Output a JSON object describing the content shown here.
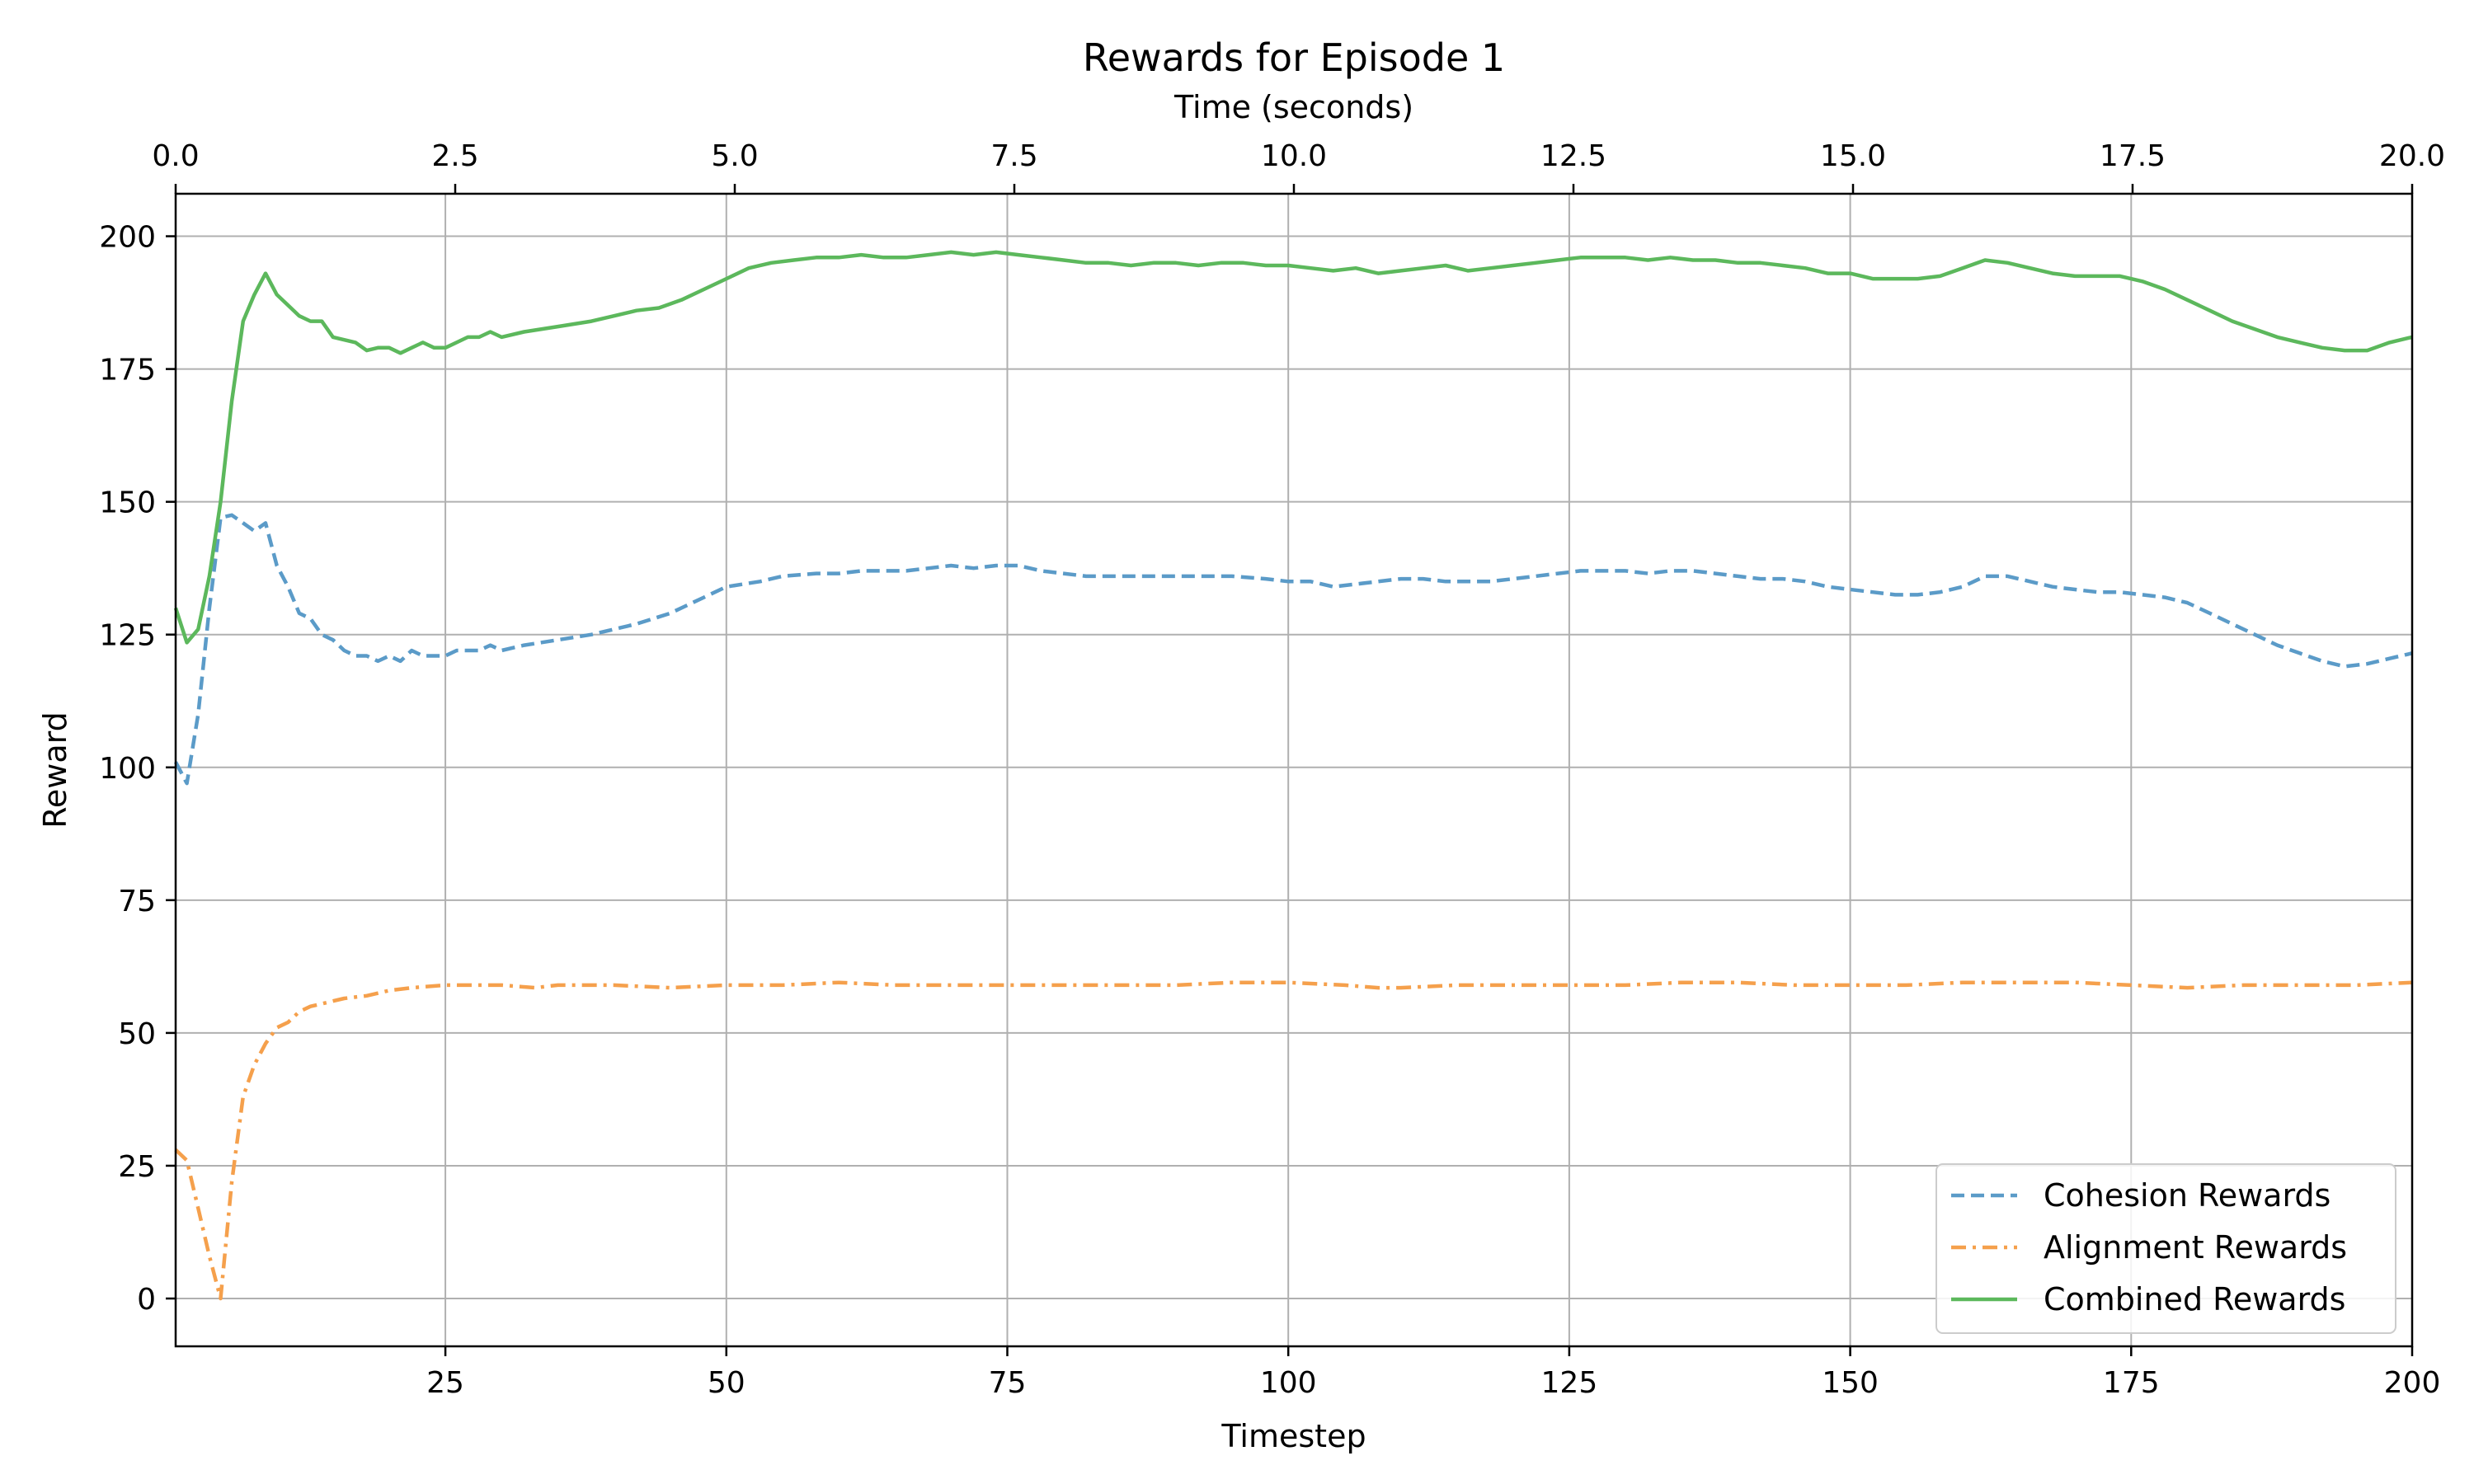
{
  "chart_data": {
    "type": "line",
    "title": "Rewards for Episode 1",
    "xlabel": "Timestep",
    "ylabel": "Reward",
    "xlim": [
      1,
      200
    ],
    "ylim": [
      -9,
      208
    ],
    "xticks": [
      25,
      50,
      75,
      100,
      125,
      150,
      175,
      200
    ],
    "yticks": [
      0,
      25,
      50,
      75,
      100,
      125,
      150,
      175,
      200
    ],
    "top_axis": {
      "label": "Time (seconds)",
      "lim": [
        0,
        20
      ],
      "ticks": [
        "0.0",
        "2.5",
        "5.0",
        "7.5",
        "10.0",
        "12.5",
        "15.0",
        "17.5",
        "20.0"
      ]
    },
    "grid": true,
    "legend_position": "lower-right",
    "series": [
      {
        "name": "Cohesion Rewards",
        "color": "#5b9bc8",
        "style": "dashed",
        "points": [
          [
            1,
            101
          ],
          [
            2,
            97
          ],
          [
            3,
            110
          ],
          [
            4,
            130
          ],
          [
            5,
            147
          ],
          [
            6,
            147.5
          ],
          [
            7,
            146
          ],
          [
            8,
            144.5
          ],
          [
            9,
            146
          ],
          [
            10,
            138
          ],
          [
            11,
            134
          ],
          [
            12,
            129
          ],
          [
            13,
            128
          ],
          [
            14,
            125
          ],
          [
            15,
            124
          ],
          [
            16,
            122
          ],
          [
            17,
            121
          ],
          [
            18,
            121
          ],
          [
            19,
            120
          ],
          [
            20,
            121
          ],
          [
            21,
            120
          ],
          [
            22,
            122
          ],
          [
            23,
            121
          ],
          [
            24,
            121
          ],
          [
            25,
            121
          ],
          [
            26,
            122
          ],
          [
            27,
            122
          ],
          [
            28,
            122
          ],
          [
            29,
            123
          ],
          [
            30,
            122
          ],
          [
            32,
            123
          ],
          [
            35,
            124
          ],
          [
            38,
            125
          ],
          [
            42,
            127
          ],
          [
            45,
            129
          ],
          [
            48,
            132
          ],
          [
            50,
            134
          ],
          [
            53,
            135
          ],
          [
            55,
            136
          ],
          [
            58,
            136.5
          ],
          [
            60,
            136.5
          ],
          [
            62,
            137
          ],
          [
            64,
            137
          ],
          [
            66,
            137
          ],
          [
            68,
            137.5
          ],
          [
            70,
            138
          ],
          [
            72,
            137.5
          ],
          [
            74,
            138
          ],
          [
            76,
            138
          ],
          [
            78,
            137
          ],
          [
            80,
            136.5
          ],
          [
            82,
            136
          ],
          [
            85,
            136
          ],
          [
            88,
            136
          ],
          [
            90,
            136
          ],
          [
            93,
            136
          ],
          [
            95,
            136
          ],
          [
            98,
            135.5
          ],
          [
            100,
            135
          ],
          [
            102,
            135
          ],
          [
            104,
            134
          ],
          [
            106,
            134.5
          ],
          [
            108,
            135
          ],
          [
            110,
            135.5
          ],
          [
            112,
            135.5
          ],
          [
            114,
            135
          ],
          [
            116,
            135
          ],
          [
            118,
            135
          ],
          [
            120,
            135.5
          ],
          [
            122,
            136
          ],
          [
            124,
            136.5
          ],
          [
            126,
            137
          ],
          [
            128,
            137
          ],
          [
            130,
            137
          ],
          [
            132,
            136.5
          ],
          [
            134,
            137
          ],
          [
            136,
            137
          ],
          [
            138,
            136.5
          ],
          [
            140,
            136
          ],
          [
            142,
            135.5
          ],
          [
            144,
            135.5
          ],
          [
            146,
            135
          ],
          [
            148,
            134
          ],
          [
            150,
            133.5
          ],
          [
            152,
            133
          ],
          [
            154,
            132.5
          ],
          [
            156,
            132.5
          ],
          [
            158,
            133
          ],
          [
            160,
            134
          ],
          [
            162,
            136
          ],
          [
            164,
            136
          ],
          [
            166,
            135
          ],
          [
            168,
            134
          ],
          [
            170,
            133.5
          ],
          [
            172,
            133
          ],
          [
            174,
            133
          ],
          [
            176,
            132.5
          ],
          [
            178,
            132
          ],
          [
            180,
            131
          ],
          [
            182,
            129
          ],
          [
            184,
            127
          ],
          [
            186,
            125
          ],
          [
            188,
            123
          ],
          [
            190,
            121.5
          ],
          [
            192,
            120
          ],
          [
            194,
            119
          ],
          [
            196,
            119.5
          ],
          [
            198,
            120.5
          ],
          [
            200,
            121.5
          ]
        ]
      },
      {
        "name": "Alignment Rewards",
        "color": "#f5a04c",
        "style": "dashdot",
        "points": [
          [
            1,
            28
          ],
          [
            2,
            26
          ],
          [
            3,
            17
          ],
          [
            4,
            8
          ],
          [
            5,
            0
          ],
          [
            6,
            22
          ],
          [
            7,
            38
          ],
          [
            8,
            44
          ],
          [
            9,
            48
          ],
          [
            10,
            51
          ],
          [
            11,
            52
          ],
          [
            12,
            54
          ],
          [
            13,
            55
          ],
          [
            14,
            55.5
          ],
          [
            15,
            56
          ],
          [
            16,
            56.5
          ],
          [
            18,
            57
          ],
          [
            20,
            58
          ],
          [
            22,
            58.5
          ],
          [
            25,
            59
          ],
          [
            28,
            59
          ],
          [
            30,
            59
          ],
          [
            33,
            58.5
          ],
          [
            35,
            59
          ],
          [
            40,
            59
          ],
          [
            45,
            58.5
          ],
          [
            50,
            59
          ],
          [
            55,
            59
          ],
          [
            60,
            59.5
          ],
          [
            65,
            59
          ],
          [
            70,
            59
          ],
          [
            75,
            59
          ],
          [
            80,
            59
          ],
          [
            85,
            59
          ],
          [
            90,
            59
          ],
          [
            95,
            59.5
          ],
          [
            100,
            59.5
          ],
          [
            105,
            59
          ],
          [
            108,
            58.5
          ],
          [
            110,
            58.5
          ],
          [
            115,
            59
          ],
          [
            120,
            59
          ],
          [
            125,
            59
          ],
          [
            130,
            59
          ],
          [
            135,
            59.5
          ],
          [
            140,
            59.5
          ],
          [
            145,
            59
          ],
          [
            150,
            59
          ],
          [
            155,
            59
          ],
          [
            160,
            59.5
          ],
          [
            165,
            59.5
          ],
          [
            170,
            59.5
          ],
          [
            175,
            59
          ],
          [
            180,
            58.5
          ],
          [
            185,
            59
          ],
          [
            190,
            59
          ],
          [
            195,
            59
          ],
          [
            200,
            59.5
          ]
        ]
      },
      {
        "name": "Combined Rewards",
        "color": "#5cb85c",
        "style": "solid",
        "points": [
          [
            1,
            130
          ],
          [
            2,
            123.5
          ],
          [
            3,
            126
          ],
          [
            4,
            136
          ],
          [
            5,
            150
          ],
          [
            6,
            169
          ],
          [
            7,
            184
          ],
          [
            8,
            189
          ],
          [
            9,
            193
          ],
          [
            10,
            189
          ],
          [
            11,
            187
          ],
          [
            12,
            185
          ],
          [
            13,
            184
          ],
          [
            14,
            184
          ],
          [
            15,
            181
          ],
          [
            16,
            180.5
          ],
          [
            17,
            180
          ],
          [
            18,
            178.5
          ],
          [
            19,
            179
          ],
          [
            20,
            179
          ],
          [
            21,
            178
          ],
          [
            22,
            179
          ],
          [
            23,
            180
          ],
          [
            24,
            179
          ],
          [
            25,
            179
          ],
          [
            26,
            180
          ],
          [
            27,
            181
          ],
          [
            28,
            181
          ],
          [
            29,
            182
          ],
          [
            30,
            181
          ],
          [
            32,
            182
          ],
          [
            35,
            183
          ],
          [
            38,
            184
          ],
          [
            40,
            185
          ],
          [
            42,
            186
          ],
          [
            44,
            186.5
          ],
          [
            46,
            188
          ],
          [
            48,
            190
          ],
          [
            50,
            192
          ],
          [
            52,
            194
          ],
          [
            54,
            195
          ],
          [
            56,
            195.5
          ],
          [
            58,
            196
          ],
          [
            60,
            196
          ],
          [
            62,
            196.5
          ],
          [
            64,
            196
          ],
          [
            66,
            196
          ],
          [
            68,
            196.5
          ],
          [
            70,
            197
          ],
          [
            72,
            196.5
          ],
          [
            74,
            197
          ],
          [
            76,
            196.5
          ],
          [
            78,
            196
          ],
          [
            80,
            195.5
          ],
          [
            82,
            195
          ],
          [
            84,
            195
          ],
          [
            86,
            194.5
          ],
          [
            88,
            195
          ],
          [
            90,
            195
          ],
          [
            92,
            194.5
          ],
          [
            94,
            195
          ],
          [
            96,
            195
          ],
          [
            98,
            194.5
          ],
          [
            100,
            194.5
          ],
          [
            102,
            194
          ],
          [
            104,
            193.5
          ],
          [
            106,
            194
          ],
          [
            108,
            193
          ],
          [
            110,
            193.5
          ],
          [
            112,
            194
          ],
          [
            114,
            194.5
          ],
          [
            116,
            193.5
          ],
          [
            118,
            194
          ],
          [
            120,
            194.5
          ],
          [
            122,
            195
          ],
          [
            124,
            195.5
          ],
          [
            126,
            196
          ],
          [
            128,
            196
          ],
          [
            130,
            196
          ],
          [
            132,
            195.5
          ],
          [
            134,
            196
          ],
          [
            136,
            195.5
          ],
          [
            138,
            195.5
          ],
          [
            140,
            195
          ],
          [
            142,
            195
          ],
          [
            144,
            194.5
          ],
          [
            146,
            194
          ],
          [
            148,
            193
          ],
          [
            150,
            193
          ],
          [
            152,
            192
          ],
          [
            154,
            192
          ],
          [
            156,
            192
          ],
          [
            158,
            192.5
          ],
          [
            160,
            194
          ],
          [
            162,
            195.5
          ],
          [
            164,
            195
          ],
          [
            166,
            194
          ],
          [
            168,
            193
          ],
          [
            170,
            192.5
          ],
          [
            172,
            192.5
          ],
          [
            174,
            192.5
          ],
          [
            176,
            191.5
          ],
          [
            178,
            190
          ],
          [
            180,
            188
          ],
          [
            182,
            186
          ],
          [
            184,
            184
          ],
          [
            186,
            182.5
          ],
          [
            188,
            181
          ],
          [
            190,
            180
          ],
          [
            192,
            179
          ],
          [
            194,
            178.5
          ],
          [
            196,
            178.5
          ],
          [
            198,
            180
          ],
          [
            200,
            181
          ]
        ]
      }
    ]
  }
}
